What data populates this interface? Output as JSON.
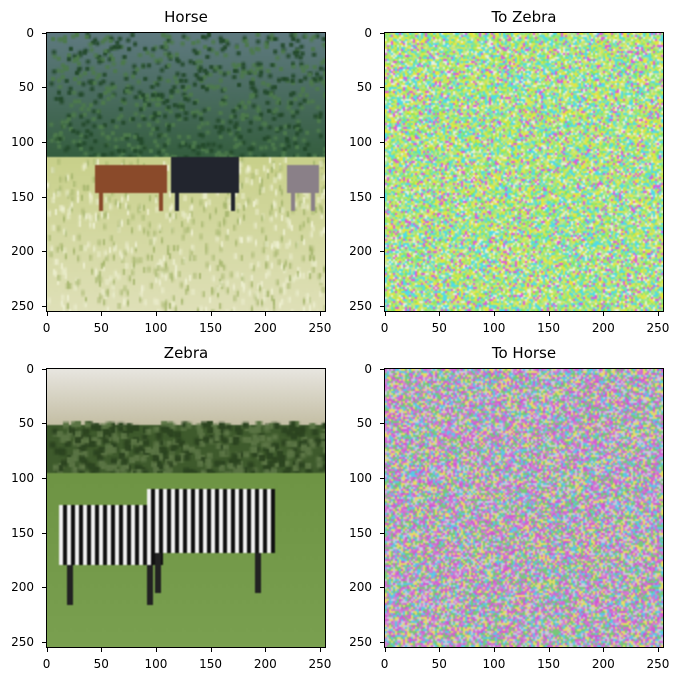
{
  "panels": [
    {
      "id": "horse",
      "title": "Horse",
      "kind": "photo-horse"
    },
    {
      "id": "to-zebra",
      "title": "To Zebra",
      "kind": "noise-green"
    },
    {
      "id": "zebra",
      "title": "Zebra",
      "kind": "photo-zebra"
    },
    {
      "id": "to-horse",
      "title": "To Horse",
      "kind": "noise-magenta"
    }
  ],
  "axes": {
    "x_ticks": [
      "0",
      "50",
      "100",
      "150",
      "200",
      "250"
    ],
    "y_ticks": [
      "0",
      "50",
      "100",
      "150",
      "200",
      "250"
    ],
    "range": [
      0,
      256
    ]
  }
}
